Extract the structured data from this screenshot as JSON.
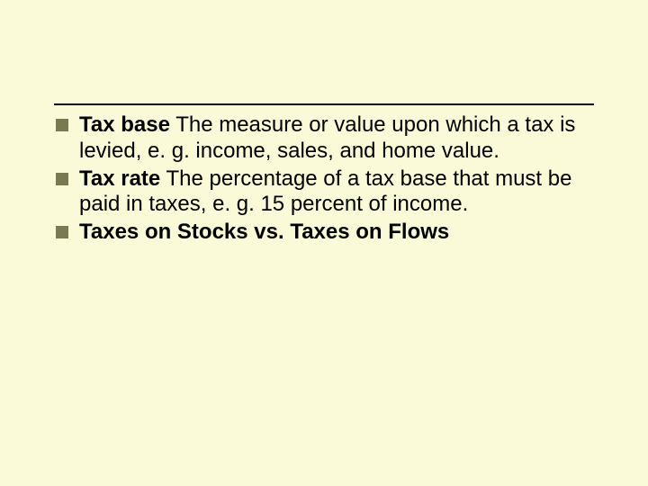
{
  "slide": {
    "background_color": "#fafad8",
    "rule_color": "#000000",
    "bullet_color": "#7a7a52",
    "text_color": "#000000",
    "font_family": "Arial",
    "body_fontsize_pt": 18,
    "bullets": [
      {
        "term": "Tax base",
        "definition": " The measure or value upon which a tax is levied, e. g. income, sales, and home value."
      },
      {
        "term": "Tax rate",
        "definition": " The percentage of a tax base that must be paid in taxes, e. g. 15 percent of income."
      },
      {
        "term": "Taxes on Stocks vs. Taxes on Flows",
        "definition": ""
      }
    ]
  }
}
